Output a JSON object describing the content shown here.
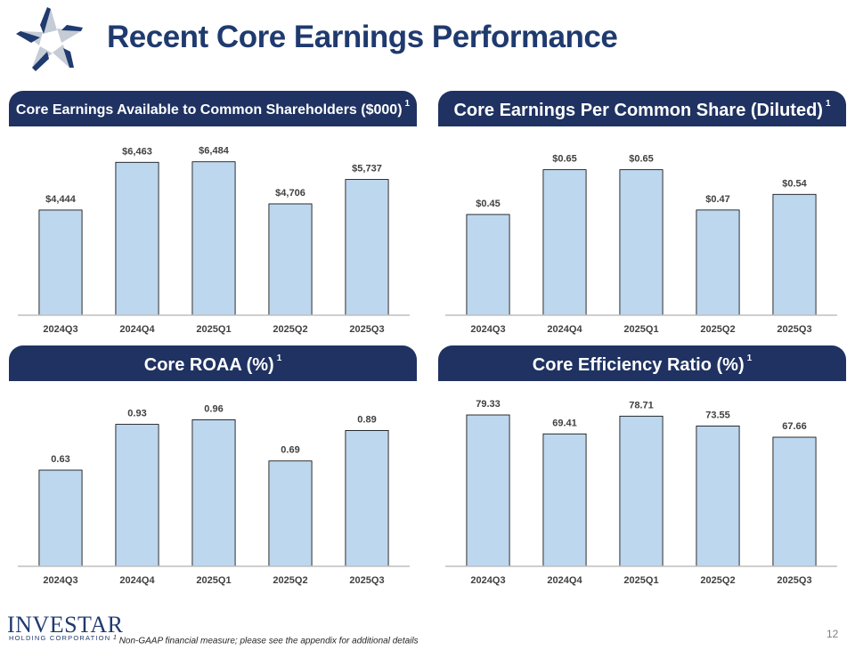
{
  "page": {
    "title": "Recent Core Earnings Performance",
    "footnote_marker": "1",
    "footnote": "Non-GAAP financial measure; please see the appendix for additional details",
    "page_number": "12",
    "brand": {
      "name": "INVESTAR",
      "sub": "HOLDING CORPORATION"
    }
  },
  "colors": {
    "header_bg": "#1f3261",
    "title": "#1f3a6e",
    "bar_fill": "#bdd7ee",
    "bar_stroke": "#000000"
  },
  "chart_data": [
    {
      "type": "bar",
      "title": "Core Earnings Available to Common Shareholders ($000)",
      "title_sup": "1",
      "categories": [
        "2024Q3",
        "2024Q4",
        "2025Q1",
        "2025Q2",
        "2025Q3"
      ],
      "values": [
        4444,
        6463,
        6484,
        4706,
        5737
      ],
      "labels": [
        "$4,444",
        "$6,463",
        "$6,484",
        "$4,706",
        "$5,737"
      ],
      "ylim": [
        0,
        7000
      ]
    },
    {
      "type": "bar",
      "title": "Core Earnings Per Common Share (Diluted)",
      "title_sup": "1",
      "categories": [
        "2024Q3",
        "2024Q4",
        "2025Q1",
        "2025Q2",
        "2025Q3"
      ],
      "values": [
        0.45,
        0.65,
        0.65,
        0.47,
        0.54
      ],
      "labels": [
        "$0.45",
        "$0.65",
        "$0.65",
        "$0.47",
        "$0.54"
      ],
      "ylim": [
        0,
        0.74
      ]
    },
    {
      "type": "bar",
      "title": "Core ROAA (%)",
      "title_sup": "1",
      "categories": [
        "2024Q3",
        "2024Q4",
        "2025Q1",
        "2025Q2",
        "2025Q3"
      ],
      "values": [
        0.63,
        0.93,
        0.96,
        0.69,
        0.89
      ],
      "labels": [
        "0.63",
        "0.93",
        "0.96",
        "0.69",
        "0.89"
      ],
      "ylim": [
        0,
        1.05
      ]
    },
    {
      "type": "bar",
      "title": "Core Efficiency Ratio (%)",
      "title_sup": "1",
      "categories": [
        "2024Q3",
        "2024Q4",
        "2025Q1",
        "2025Q2",
        "2025Q3"
      ],
      "values": [
        79.33,
        69.41,
        78.71,
        73.55,
        67.66
      ],
      "labels": [
        "79.33",
        "69.41",
        "78.71",
        "73.55",
        "67.66"
      ],
      "ylim": [
        0,
        84
      ]
    }
  ]
}
